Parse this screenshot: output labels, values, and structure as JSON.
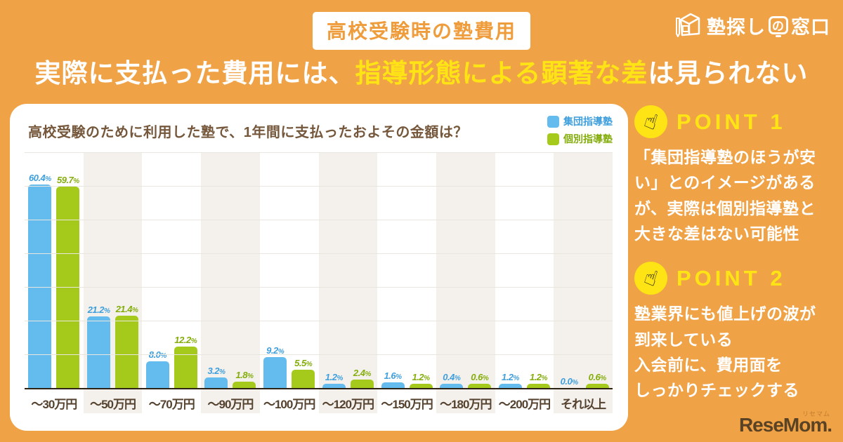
{
  "badge": {
    "label": "高校受験時の塾費用"
  },
  "brand": {
    "name_part1": "塾探し",
    "name_mid": "の",
    "name_part2": "窓口"
  },
  "title": {
    "pre": "実際に支払った費用には、",
    "highlight": "指導形態による顕著な差",
    "post": "は見られない"
  },
  "chart_data": {
    "type": "bar",
    "title": "高校受験のために利用した塾で、1年間に支払ったおよその金額は？",
    "categories": [
      "〜30万円",
      "〜50万円",
      "〜70万円",
      "〜90万円",
      "〜100万円",
      "〜120万円",
      "〜150万円",
      "〜180万円",
      "〜200万円",
      "それ以上"
    ],
    "series": [
      {
        "name": "集団指導塾",
        "color": "#63bbee",
        "label_color": "#3f9fdc",
        "values": [
          60.4,
          21.2,
          8.0,
          3.2,
          9.2,
          1.2,
          1.6,
          0.4,
          1.2,
          0.0
        ]
      },
      {
        "name": "個別指導塾",
        "color": "#a5ca1c",
        "label_color": "#84ad0b",
        "values": [
          59.7,
          21.4,
          12.2,
          1.8,
          5.5,
          2.4,
          1.2,
          0.6,
          1.2,
          0.6
        ]
      }
    ],
    "unit": "%",
    "ylim": [
      0,
      70
    ],
    "grid_step": 10,
    "grid": true,
    "legend_position": "top-right"
  },
  "points": [
    {
      "heading": "POINT 1",
      "body": "「集団指導塾のほうが安\nい」とのイメージがある\nが、実際は個別指導塾と\n大きな差はない可能性"
    },
    {
      "heading": "POINT 2",
      "body": "塾業界にも値上げの波が\n到来している\n入会前に、費用面を\nしっかりチェックする"
    }
  ],
  "footer": {
    "logo_text": "ReseMom.",
    "logo_ruby": "リセマム"
  },
  "colors": {
    "background": "#f0a246",
    "highlight_yellow": "#ffe415",
    "group_blue": "#63bbee",
    "individual_green": "#a5ca1c",
    "badge_orange": "#ef9d3c",
    "chart_text_brown": "#75573b"
  }
}
